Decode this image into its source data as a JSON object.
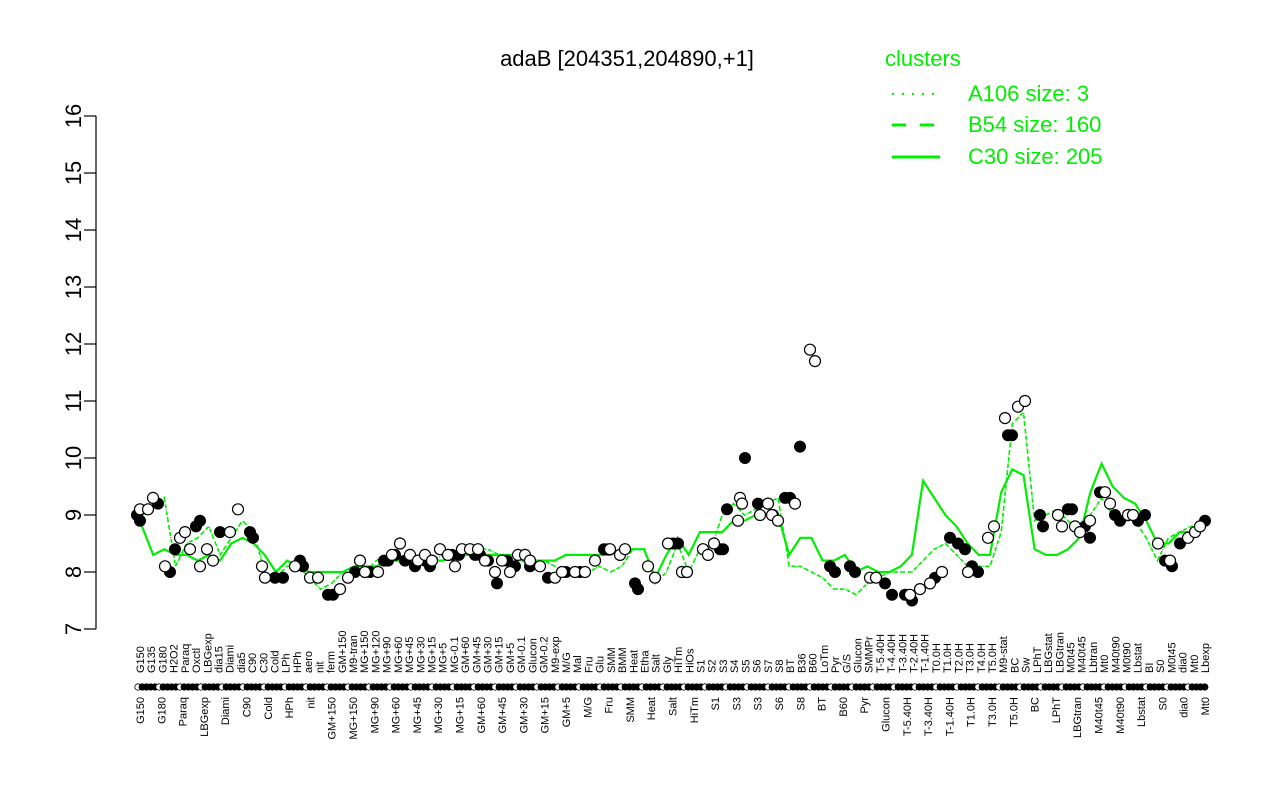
{
  "chart_data": {
    "type": "line",
    "title": "adaB [204351,204890,+1]",
    "xlabel": "",
    "ylabel": "",
    "ylim": [
      7,
      16
    ],
    "yticks": [
      7,
      8,
      9,
      10,
      11,
      12,
      13,
      14,
      15,
      16
    ],
    "grid": false,
    "legend_placement": "top-right",
    "legend": {
      "title": "clusters",
      "color": "#00ee00",
      "entries": [
        {
          "label": "A106 size: 3",
          "style": "dotted"
        },
        {
          "label": "B54 size: 160",
          "style": "dashed"
        },
        {
          "label": "C30 size: 205",
          "style": "solid"
        }
      ]
    },
    "x_tick_labels_upper": [
      "G150",
      "G135",
      "G180",
      "H2O2",
      "Paraq",
      "Oxctl",
      "LBGexp",
      "dia15",
      "Diami",
      "dia5",
      "C90",
      "C30",
      "Cold",
      "LPh",
      "HPh",
      "aero",
      "nit",
      "ferm",
      "GM+150",
      "M9-tran",
      "MG+150",
      "MG+120",
      "MG+90",
      "MG+60",
      "MG+45",
      "MG+30",
      "MG+15",
      "MG+5",
      "MG-0.1",
      "GM+60",
      "GM+45",
      "GM+30",
      "GM+15",
      "GM+5",
      "GM-0.1",
      "Glucon",
      "GM-0.2",
      "M9-exp",
      "M/G",
      "Mal",
      "Fru",
      "Glu",
      "SMM",
      "BMM",
      "Heat",
      "Etha",
      "Salt",
      "Gly",
      "HiTm",
      "HiOs",
      "S1",
      "S2",
      "S3",
      "S4",
      "S5",
      "S6",
      "S7",
      "S8",
      "BT",
      "B36",
      "B60",
      "LoTm",
      "Pyr",
      "G/S",
      "Glucon",
      "SMMPr",
      "T-5.40H",
      "T-4.40H",
      "T-3.40H",
      "T-2.40H",
      "T-1.40H",
      "T0.0H",
      "T1.0H",
      "T2.0H",
      "T3.0H",
      "T4.0H",
      "T5.0H",
      "M9-stat",
      "BC",
      "Sw",
      "LPhT",
      "LBGstat",
      "LBGtran",
      "M0t45",
      "M40t45",
      "Lbtran",
      "Mt0",
      "M40t90",
      "M0t90",
      "Lbstat",
      "BI",
      "S0",
      "M0t45",
      "dia0",
      "Mt0",
      "Lbexp"
    ],
    "x_tick_labels_lower": [
      "G150",
      "G180",
      "Paraq",
      "LBGexp",
      "Diami",
      "C90",
      "Cold",
      "HPh",
      "nit",
      "GM+150",
      "MG+150",
      "MG+90",
      "MG+60",
      "MG+45",
      "MG+30",
      "MG+15",
      "GM+60",
      "GM+45",
      "GM+30",
      "GM+15",
      "GM+5",
      "M/G",
      "Fru",
      "SMM",
      "Heat",
      "Salt",
      "HiTm",
      "S1",
      "S3",
      "S3",
      "S6",
      "S8",
      "BT",
      "B60",
      "Pyr",
      "Glucon",
      "T-5.40H",
      "T-3.40H",
      "T-1.40H",
      "T1.0H",
      "T3.0H",
      "T5.0H",
      "BC",
      "LPhT",
      "LBGtran",
      "M40t45",
      "M40t90",
      "Lbstat",
      "S0",
      "dia0",
      "Mt0"
    ],
    "series": [
      {
        "name": "A106 size: 3",
        "style": "dotted",
        "color": "#00ee00",
        "y": [
          9.0,
          9.1,
          9.3,
          8.1,
          8.5,
          8.6,
          8.8,
          8.3,
          8.6,
          8.9,
          8.7,
          8.0,
          7.9,
          8.1,
          8.1,
          7.9,
          7.7,
          7.8,
          8.0,
          8.1,
          8.0,
          8.2,
          8.3,
          8.3,
          8.2,
          8.2,
          8.2,
          8.3,
          8.3,
          8.3,
          8.4,
          8.4,
          8.3,
          8.3,
          8.2,
          8.1,
          8.2,
          8.1,
          8.0,
          8.0,
          8.0,
          8.1,
          8.0,
          8.1,
          8.4,
          8.4,
          7.8,
          8.0,
          8.5,
          8.0,
          8.4,
          8.4,
          9.0,
          9.2,
          9.0,
          9.1,
          9.2,
          9.3,
          8.1,
          8.1,
          8.0,
          7.9,
          7.7,
          7.7,
          7.6,
          7.8,
          7.9,
          8.0,
          8.0,
          8.0,
          8.2,
          8.4,
          8.5,
          8.3,
          8.1,
          8.1,
          8.1,
          8.7,
          10.6,
          10.8,
          8.9,
          9.0,
          9.1,
          8.9,
          8.7,
          9.0,
          9.3,
          9.0,
          8.9,
          8.9,
          8.6,
          8.2,
          8.6,
          8.7,
          8.8,
          8.8
        ]
      },
      {
        "name": "B54 size: 160",
        "style": "dashed",
        "color": "#00ee00",
        "y": [
          9.0,
          9.1,
          9.3,
          8.1,
          8.5,
          8.6,
          8.8,
          8.3,
          8.6,
          8.9,
          8.7,
          8.0,
          7.9,
          8.1,
          8.1,
          7.9,
          7.7,
          7.8,
          8.0,
          8.1,
          8.0,
          8.2,
          8.3,
          8.3,
          8.2,
          8.2,
          8.2,
          8.3,
          8.3,
          8.3,
          8.4,
          8.4,
          8.3,
          8.3,
          8.2,
          8.1,
          8.2,
          8.1,
          8.0,
          8.0,
          8.0,
          8.1,
          8.0,
          8.1,
          8.4,
          8.4,
          7.8,
          8.0,
          8.5,
          8.0,
          8.4,
          8.4,
          9.0,
          9.2,
          9.0,
          9.1,
          9.2,
          9.3,
          8.1,
          8.1,
          8.0,
          7.9,
          7.7,
          7.7,
          7.6,
          7.8,
          7.9,
          8.0,
          8.0,
          8.0,
          8.2,
          8.4,
          8.5,
          8.3,
          8.1,
          8.1,
          8.1,
          8.7,
          10.6,
          10.8,
          8.9,
          9.0,
          9.1,
          8.9,
          8.7,
          9.0,
          9.3,
          9.0,
          8.9,
          8.9,
          8.6,
          8.2,
          8.6,
          8.7,
          8.8,
          8.8
        ]
      },
      {
        "name": "C30 size: 205",
        "style": "solid",
        "color": "#00ee00",
        "y": [
          8.8,
          8.3,
          8.4,
          8.3,
          8.3,
          8.2,
          8.3,
          8.2,
          8.5,
          8.6,
          8.5,
          8.3,
          8.0,
          8.2,
          8.1,
          8.0,
          8.0,
          8.0,
          8.0,
          8.1,
          8.1,
          8.1,
          8.2,
          8.2,
          8.2,
          8.2,
          8.2,
          8.2,
          8.3,
          8.3,
          8.3,
          8.3,
          8.3,
          8.3,
          8.3,
          8.2,
          8.2,
          8.2,
          8.3,
          8.3,
          8.3,
          8.3,
          8.3,
          8.4,
          8.4,
          8.4,
          7.9,
          8.3,
          8.6,
          8.3,
          8.7,
          8.7,
          8.7,
          8.9,
          8.9,
          9.0,
          9.0,
          9.0,
          8.3,
          8.6,
          8.6,
          8.2,
          8.2,
          8.3,
          8.0,
          8.1,
          8.0,
          8.0,
          8.1,
          8.3,
          9.6,
          9.3,
          9.0,
          8.8,
          8.5,
          8.3,
          8.3,
          9.4,
          9.8,
          9.7,
          8.4,
          8.3,
          8.3,
          8.4,
          8.6,
          9.4,
          9.9,
          9.5,
          9.3,
          9.2,
          8.9,
          8.5,
          8.5,
          8.7,
          8.7,
          8.8
        ]
      }
    ],
    "points_open": [
      [
        140,
        9.1
      ],
      [
        148,
        9.1
      ],
      [
        153,
        9.3
      ],
      [
        165,
        8.1
      ],
      [
        180,
        8.6
      ],
      [
        185,
        8.7
      ],
      [
        190,
        8.4
      ],
      [
        200,
        8.1
      ],
      [
        207,
        8.4
      ],
      [
        213,
        8.2
      ],
      [
        230,
        8.7
      ],
      [
        238,
        9.1
      ],
      [
        262,
        8.1
      ],
      [
        265,
        7.9
      ],
      [
        295,
        8.1
      ],
      [
        310,
        7.9
      ],
      [
        318,
        7.9
      ],
      [
        340,
        7.7
      ],
      [
        348,
        7.9
      ],
      [
        360,
        8.2
      ],
      [
        365,
        8.0
      ],
      [
        378,
        8.0
      ],
      [
        392,
        8.3
      ],
      [
        400,
        8.5
      ],
      [
        410,
        8.3
      ],
      [
        418,
        8.2
      ],
      [
        425,
        8.3
      ],
      [
        432,
        8.2
      ],
      [
        440,
        8.4
      ],
      [
        448,
        8.3
      ],
      [
        455,
        8.1
      ],
      [
        462,
        8.4
      ],
      [
        470,
        8.4
      ],
      [
        478,
        8.4
      ],
      [
        485,
        8.2
      ],
      [
        495,
        8.0
      ],
      [
        502,
        8.2
      ],
      [
        510,
        8.0
      ],
      [
        518,
        8.3
      ],
      [
        525,
        8.3
      ],
      [
        530,
        8.2
      ],
      [
        540,
        8.1
      ],
      [
        555,
        7.9
      ],
      [
        562,
        8.0
      ],
      [
        575,
        8.0
      ],
      [
        585,
        8.0
      ],
      [
        595,
        8.2
      ],
      [
        610,
        8.4
      ],
      [
        620,
        8.3
      ],
      [
        625,
        8.4
      ],
      [
        648,
        8.1
      ],
      [
        655,
        7.9
      ],
      [
        668,
        8.5
      ],
      [
        682,
        8.0
      ],
      [
        687,
        8.0
      ],
      [
        703,
        8.4
      ],
      [
        708,
        8.3
      ],
      [
        714,
        8.5
      ],
      [
        738,
        8.9
      ],
      [
        740,
        9.3
      ],
      [
        742,
        9.2
      ],
      [
        760,
        9.0
      ],
      [
        768,
        9.2
      ],
      [
        772,
        9.0
      ],
      [
        778,
        8.9
      ],
      [
        795,
        9.2
      ],
      [
        810,
        11.9
      ],
      [
        815,
        11.7
      ],
      [
        870,
        7.9
      ],
      [
        876,
        7.9
      ],
      [
        910,
        7.6
      ],
      [
        920,
        7.7
      ],
      [
        930,
        7.8
      ],
      [
        942,
        8.0
      ],
      [
        968,
        8.0
      ],
      [
        988,
        8.6
      ],
      [
        994,
        8.8
      ],
      [
        1005,
        10.7
      ],
      [
        1018,
        10.9
      ],
      [
        1025,
        11.0
      ],
      [
        1058,
        9.0
      ],
      [
        1062,
        8.8
      ],
      [
        1075,
        8.8
      ],
      [
        1080,
        8.7
      ],
      [
        1090,
        8.9
      ],
      [
        1105,
        9.4
      ],
      [
        1110,
        9.2
      ],
      [
        1128,
        9.0
      ],
      [
        1133,
        9.0
      ],
      [
        1158,
        8.5
      ],
      [
        1170,
        8.2
      ],
      [
        1188,
        8.6
      ],
      [
        1195,
        8.7
      ],
      [
        1200,
        8.8
      ]
    ],
    "points_filled": [
      [
        137,
        9.0
      ],
      [
        140,
        8.9
      ],
      [
        158,
        9.2
      ],
      [
        170,
        8.0
      ],
      [
        175,
        8.4
      ],
      [
        196,
        8.8
      ],
      [
        200,
        8.9
      ],
      [
        220,
        8.7
      ],
      [
        250,
        8.7
      ],
      [
        253,
        8.6
      ],
      [
        275,
        7.9
      ],
      [
        283,
        7.9
      ],
      [
        300,
        8.2
      ],
      [
        303,
        8.1
      ],
      [
        328,
        7.6
      ],
      [
        333,
        7.6
      ],
      [
        355,
        8.0
      ],
      [
        370,
        8.0
      ],
      [
        384,
        8.2
      ],
      [
        388,
        8.2
      ],
      [
        395,
        8.3
      ],
      [
        405,
        8.2
      ],
      [
        415,
        8.1
      ],
      [
        425,
        8.2
      ],
      [
        430,
        8.1
      ],
      [
        448,
        8.3
      ],
      [
        452,
        8.3
      ],
      [
        459,
        8.3
      ],
      [
        475,
        8.3
      ],
      [
        480,
        8.3
      ],
      [
        488,
        8.2
      ],
      [
        497,
        7.8
      ],
      [
        507,
        8.2
      ],
      [
        515,
        8.1
      ],
      [
        530,
        8.1
      ],
      [
        548,
        7.9
      ],
      [
        566,
        8.0
      ],
      [
        580,
        8.0
      ],
      [
        604,
        8.4
      ],
      [
        608,
        8.4
      ],
      [
        635,
        7.8
      ],
      [
        638,
        7.7
      ],
      [
        673,
        8.5
      ],
      [
        678,
        8.5
      ],
      [
        720,
        8.4
      ],
      [
        723,
        8.4
      ],
      [
        727,
        9.1
      ],
      [
        745,
        10.0
      ],
      [
        758,
        9.2
      ],
      [
        773,
        9.0
      ],
      [
        785,
        9.3
      ],
      [
        790,
        9.3
      ],
      [
        800,
        10.2
      ],
      [
        830,
        8.1
      ],
      [
        835,
        8.0
      ],
      [
        850,
        8.1
      ],
      [
        855,
        8.0
      ],
      [
        885,
        7.8
      ],
      [
        892,
        7.6
      ],
      [
        905,
        7.6
      ],
      [
        912,
        7.5
      ],
      [
        935,
        7.9
      ],
      [
        950,
        8.6
      ],
      [
        958,
        8.5
      ],
      [
        965,
        8.4
      ],
      [
        972,
        8.1
      ],
      [
        978,
        8.0
      ],
      [
        1008,
        10.4
      ],
      [
        1012,
        10.4
      ],
      [
        1040,
        9.0
      ],
      [
        1043,
        8.8
      ],
      [
        1068,
        9.1
      ],
      [
        1072,
        9.1
      ],
      [
        1085,
        8.8
      ],
      [
        1090,
        8.6
      ],
      [
        1100,
        9.4
      ],
      [
        1115,
        9.0
      ],
      [
        1120,
        8.9
      ],
      [
        1138,
        8.9
      ],
      [
        1145,
        9.0
      ],
      [
        1165,
        8.2
      ],
      [
        1172,
        8.1
      ],
      [
        1180,
        8.5
      ],
      [
        1205,
        8.9
      ]
    ]
  }
}
